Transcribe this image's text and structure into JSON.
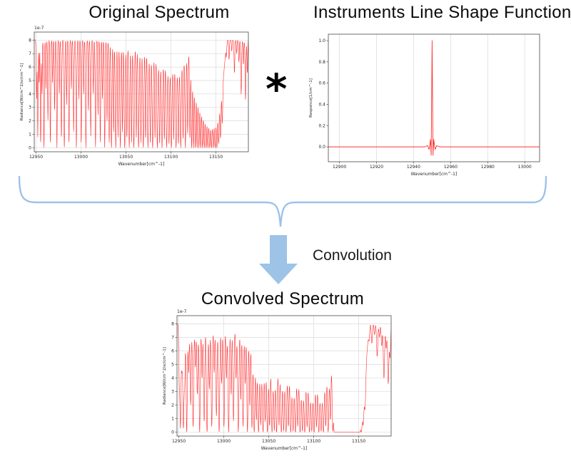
{
  "figure": {
    "asterisk": "*",
    "convolution_label": "Convolution",
    "accent_color": "#9DC3E6",
    "spectrum_color": "#ff3032"
  },
  "chart_data": [
    {
      "type": "line",
      "title": "Original Spectrum",
      "xlabel": "Wavenumber[cm^-1]",
      "ylabel": "Radiance[W/cm^2/sr/cm^-1]",
      "offset_label": "1e-7",
      "xlim": [
        12948,
        13186
      ],
      "ylim": [
        -0.3,
        8.6
      ],
      "xticks": [
        12950,
        13000,
        13050,
        13100,
        13150
      ],
      "yticks": [
        0,
        1,
        2,
        3,
        4,
        5,
        6,
        7,
        8
      ],
      "ytick_decimals": 0,
      "grid": "both",
      "legend": "none",
      "line_color": "#ff3032",
      "series": {
        "kind": "absorption",
        "baseline": 8.0,
        "width_scale": 1.0,
        "envelope": [
          [
            12948,
            8.02
          ],
          [
            13035,
            7.95
          ],
          [
            13060,
            7.75
          ],
          [
            13075,
            7.3
          ],
          [
            13090,
            6.5
          ],
          [
            13100,
            6.0
          ],
          [
            13110,
            6.1
          ],
          [
            13118,
            7.0
          ],
          [
            13122,
            7.45
          ],
          [
            13126,
            6.0
          ],
          [
            13132,
            4.2
          ],
          [
            13138,
            2.8
          ],
          [
            13144,
            2.1
          ],
          [
            13150,
            2.4
          ],
          [
            13155,
            3.6
          ],
          [
            13158,
            5.0
          ],
          [
            13161,
            7.3
          ],
          [
            13163,
            8.0
          ],
          [
            13186,
            7.95
          ]
        ],
        "lines": [
          [
            12950.6,
            0.55,
            0.55
          ],
          [
            12951.9,
            0.9,
            0.5
          ],
          [
            12953.4,
            0.4,
            0.5
          ],
          [
            12955.1,
            0.95,
            0.6
          ],
          [
            12956.6,
            0.5,
            0.5
          ],
          [
            12958.8,
            1.0,
            0.6
          ],
          [
            12961,
            0.45,
            0.5
          ],
          [
            12963.2,
            0.75,
            0.55
          ],
          [
            12965.9,
            0.95,
            0.6
          ],
          [
            12968.4,
            0.4,
            0.5
          ],
          [
            12970.6,
            0.65,
            0.55
          ],
          [
            12973.2,
            1.0,
            0.6
          ],
          [
            12975.8,
            0.5,
            0.5
          ],
          [
            12978.2,
            0.9,
            0.6
          ],
          [
            12981.4,
            1.0,
            0.65
          ],
          [
            12984,
            0.6,
            0.5
          ],
          [
            12986.6,
            0.95,
            0.6
          ],
          [
            12989.3,
            0.45,
            0.5
          ],
          [
            12991.8,
            0.85,
            0.6
          ],
          [
            12994.8,
            1.0,
            0.65
          ],
          [
            12997.6,
            0.55,
            0.5
          ],
          [
            13000.2,
            0.95,
            0.6
          ],
          [
            13002.9,
            0.5,
            0.5
          ],
          [
            13005.4,
            1.0,
            0.65
          ],
          [
            13008.2,
            0.65,
            0.5
          ],
          [
            13010.8,
            0.9,
            0.6
          ],
          [
            13013.6,
            0.5,
            0.5
          ],
          [
            13016.1,
            1.0,
            0.65
          ],
          [
            13018.9,
            0.7,
            0.5
          ],
          [
            13021.4,
            0.95,
            0.6
          ],
          [
            13023.8,
            0.55,
            0.5
          ],
          [
            13026.3,
            1.0,
            0.65
          ],
          [
            13028.9,
            0.75,
            0.55
          ],
          [
            13031.3,
            0.95,
            0.6
          ],
          [
            13033.8,
            1.0,
            0.75
          ],
          [
            13036.2,
            0.85,
            0.6
          ],
          [
            13038.6,
            1.0,
            0.8
          ],
          [
            13041.1,
            0.9,
            0.65
          ],
          [
            13043.6,
            1.0,
            0.8
          ],
          [
            13046,
            0.85,
            0.6
          ],
          [
            13048.5,
            1.0,
            0.85
          ],
          [
            13051,
            0.9,
            0.65
          ],
          [
            13053.6,
            1.0,
            0.8
          ],
          [
            13056.1,
            0.95,
            0.7
          ],
          [
            13058.7,
            1.0,
            0.85
          ],
          [
            13061.4,
            0.9,
            0.65
          ],
          [
            13064,
            1.0,
            0.85
          ],
          [
            13066.6,
            0.95,
            0.7
          ],
          [
            13069.2,
            1.0,
            0.85
          ],
          [
            13071.8,
            0.9,
            0.65
          ],
          [
            13074.4,
            1.0,
            0.85
          ],
          [
            13077,
            0.95,
            0.75
          ],
          [
            13079.6,
            1.0,
            0.85
          ],
          [
            13082.2,
            0.9,
            0.65
          ],
          [
            13084.8,
            1.0,
            0.85
          ],
          [
            13087.4,
            0.95,
            0.75
          ],
          [
            13090,
            1.0,
            0.85
          ],
          [
            13092.6,
            0.9,
            0.65
          ],
          [
            13095.2,
            1.0,
            0.85
          ],
          [
            13097.8,
            0.95,
            0.75
          ],
          [
            13100.4,
            1.0,
            0.85
          ],
          [
            13103,
            0.9,
            0.65
          ],
          [
            13105.6,
            1.0,
            0.85
          ],
          [
            13108.2,
            0.95,
            0.75
          ],
          [
            13110.8,
            1.0,
            0.85
          ],
          [
            13113.4,
            0.9,
            0.65
          ],
          [
            13116,
            1.0,
            0.8
          ],
          [
            13118.5,
            0.85,
            0.65
          ],
          [
            13121,
            0.9,
            0.7
          ],
          [
            13123,
            1.0,
            0.8
          ],
          [
            13125,
            1.0,
            0.75
          ],
          [
            13127,
            1.0,
            0.8
          ],
          [
            13129,
            1.0,
            0.75
          ],
          [
            13131,
            1.0,
            0.8
          ],
          [
            13133,
            1.0,
            0.75
          ],
          [
            13135,
            1.0,
            0.8
          ],
          [
            13137,
            1.0,
            0.75
          ],
          [
            13139,
            1.0,
            0.8
          ],
          [
            13141,
            1.0,
            0.75
          ],
          [
            13143,
            1.0,
            0.8
          ],
          [
            13145,
            1.0,
            0.75
          ],
          [
            13147,
            1.0,
            0.8
          ],
          [
            13149,
            1.0,
            0.75
          ],
          [
            13151,
            1.0,
            0.8
          ],
          [
            13153,
            0.9,
            0.75
          ],
          [
            13155,
            0.8,
            0.7
          ],
          [
            13157,
            0.6,
            0.65
          ],
          [
            13161.5,
            0.1,
            0.5
          ],
          [
            13164.5,
            0.18,
            0.55
          ],
          [
            13167.5,
            0.1,
            0.5
          ],
          [
            13170.5,
            0.3,
            0.6
          ],
          [
            13173,
            0.12,
            0.5
          ],
          [
            13175.5,
            0.2,
            0.55
          ],
          [
            13178,
            0.5,
            0.65
          ],
          [
            13180.5,
            0.22,
            0.55
          ],
          [
            13182.8,
            0.55,
            0.65
          ],
          [
            13184.8,
            0.3,
            0.55
          ]
        ]
      }
    },
    {
      "type": "line",
      "title": "Instruments Line Shape Function",
      "xlabel": "Wavenumber[cm^-1]",
      "ylabel": "Responce[1/cm^-1]",
      "offset_label": "",
      "xlim": [
        12894,
        13008
      ],
      "ylim": [
        -0.14,
        1.06
      ],
      "xticks": [
        12900,
        12920,
        12940,
        12960,
        12980,
        13000
      ],
      "yticks": [
        0.0,
        0.2,
        0.4,
        0.6,
        0.8,
        1.0
      ],
      "ytick_decimals": 1,
      "grid": "x",
      "legend": "none",
      "line_color": "#ff3032",
      "peak_center": 12950,
      "peak_height": 1.0,
      "series": {
        "kind": "points",
        "points": [
          [
            12894,
            0
          ],
          [
            12946,
            0
          ],
          [
            12947.5,
            0.012
          ],
          [
            12948.4,
            -0.025
          ],
          [
            12949.1,
            0.07
          ],
          [
            12949.5,
            -0.08
          ],
          [
            12949.8,
            0.55
          ],
          [
            12950,
            1.0
          ],
          [
            12950.2,
            0.55
          ],
          [
            12950.5,
            -0.08
          ],
          [
            12950.9,
            0.07
          ],
          [
            12951.6,
            -0.025
          ],
          [
            12952.5,
            0.012
          ],
          [
            12954,
            0
          ],
          [
            13008,
            0
          ]
        ]
      }
    },
    {
      "type": "line",
      "title": "Convolved Spectrum",
      "xlabel": "Wavenumber[cm^-1]",
      "ylabel": "Radiance[W/cm^2/sr/cm^-1]",
      "offset_label": "1e-7",
      "xlim": [
        12948,
        13186
      ],
      "ylim": [
        -0.3,
        8.6
      ],
      "xticks": [
        12950,
        13000,
        13050,
        13100,
        13150
      ],
      "yticks": [
        0,
        1,
        2,
        3,
        4,
        5,
        6,
        7,
        8
      ],
      "ytick_decimals": 0,
      "grid": "both",
      "legend": "none",
      "line_color": "#ff3032",
      "series": {
        "kind": "absorption",
        "baseline": 8.0,
        "width_scale": 1.55,
        "envelope_ref": 0,
        "lines_ref": 0
      }
    }
  ]
}
